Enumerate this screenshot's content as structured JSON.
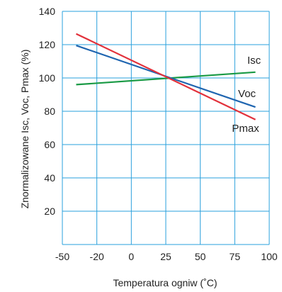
{
  "chart_data": {
    "type": "line",
    "title": "",
    "xlabel": "Temperatura ogniw (˚C)",
    "ylabel": "Znormalizowane Isc, Voc, Pmax (%)",
    "x_ticks": [
      "-50",
      "-20",
      "0",
      "25",
      "50",
      "75",
      "100"
    ],
    "y_ticks": [
      "20",
      "40",
      "60",
      "80",
      "100",
      "120",
      "140"
    ],
    "ylim": [
      0,
      140
    ],
    "grid": true,
    "grid_color": "#2aa0dc",
    "series": [
      {
        "name": "Isc",
        "color": "#1a9a45",
        "x": [
          -40,
          90
        ],
        "y": [
          96,
          103.5
        ]
      },
      {
        "name": "Voc",
        "color": "#1f65b0",
        "x": [
          -40,
          90
        ],
        "y": [
          119.5,
          82.5
        ]
      },
      {
        "name": "Pmax",
        "color": "#e2313b",
        "x": [
          -40,
          90
        ],
        "y": [
          126.5,
          75
        ]
      }
    ]
  }
}
